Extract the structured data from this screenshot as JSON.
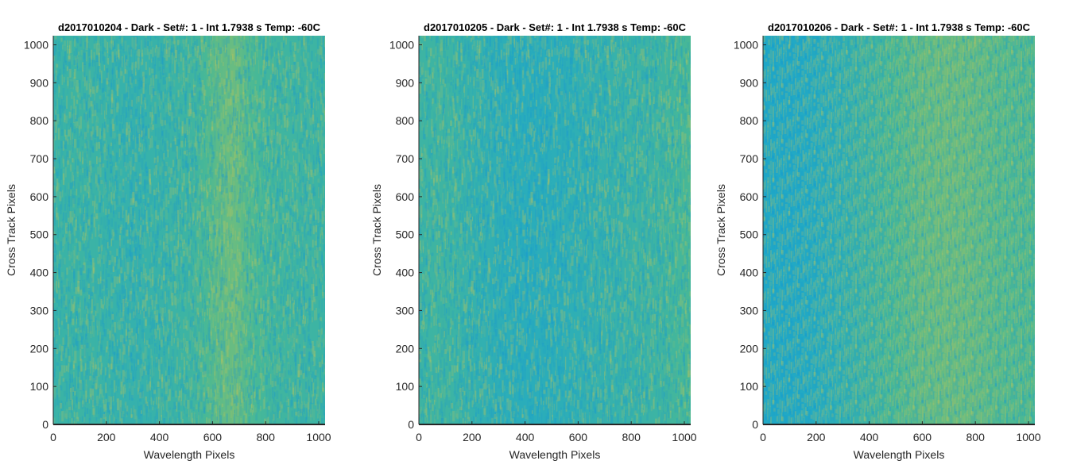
{
  "chart_data": [
    {
      "type": "heatmap",
      "title": "d2017010204 - Dark - Set#: 1 - Int 1.7938 s Temp: -60C",
      "xlabel": "Wavelength Pixels",
      "ylabel": "Cross Track Pixels",
      "xlim": [
        0,
        1024
      ],
      "ylim": [
        0,
        1024
      ],
      "xticks": [
        0,
        200,
        400,
        600,
        800,
        1000
      ],
      "yticks": [
        0,
        100,
        200,
        300,
        400,
        500,
        600,
        700,
        800,
        900,
        1000
      ],
      "colormap": "parula",
      "column_trend": {
        "x": [
          0,
          100,
          200,
          300,
          400,
          500,
          560,
          620,
          680,
          740,
          800,
          900,
          1024
        ],
        "level": [
          0.42,
          0.44,
          0.42,
          0.4,
          0.42,
          0.44,
          0.48,
          0.56,
          0.6,
          0.52,
          0.47,
          0.45,
          0.44
        ]
      }
    },
    {
      "type": "heatmap",
      "title": "d2017010205 - Dark - Set#: 1 - Int 1.7938 s Temp: -60C",
      "xlabel": "Wavelength Pixels",
      "ylabel": "Cross Track Pixels",
      "xlim": [
        0,
        1024
      ],
      "ylim": [
        0,
        1024
      ],
      "xticks": [
        0,
        200,
        400,
        600,
        800,
        1000
      ],
      "yticks": [
        0,
        100,
        200,
        300,
        400,
        500,
        600,
        700,
        800,
        900,
        1000
      ],
      "colormap": "parula",
      "column_trend": {
        "x": [
          0,
          100,
          200,
          300,
          400,
          500,
          600,
          700,
          800,
          900,
          1024
        ],
        "level": [
          0.44,
          0.45,
          0.4,
          0.36,
          0.34,
          0.35,
          0.37,
          0.4,
          0.42,
          0.44,
          0.5
        ]
      }
    },
    {
      "type": "heatmap",
      "title": "d2017010206 - Dark - Set#: 1 - Int 1.7938 s Temp: -60C",
      "xlabel": "Wavelength Pixels",
      "ylabel": "Cross Track Pixels",
      "xlim": [
        0,
        1024
      ],
      "ylim": [
        0,
        1024
      ],
      "xticks": [
        0,
        200,
        400,
        600,
        800,
        1000
      ],
      "yticks": [
        0,
        100,
        200,
        300,
        400,
        500,
        600,
        700,
        800,
        900,
        1000
      ],
      "colormap": "parula",
      "column_trend": {
        "x": [
          0,
          100,
          200,
          300,
          400,
          500,
          600,
          700,
          800,
          900,
          1024
        ],
        "level": [
          0.28,
          0.28,
          0.32,
          0.38,
          0.44,
          0.5,
          0.56,
          0.58,
          0.56,
          0.52,
          0.5
        ]
      }
    }
  ]
}
